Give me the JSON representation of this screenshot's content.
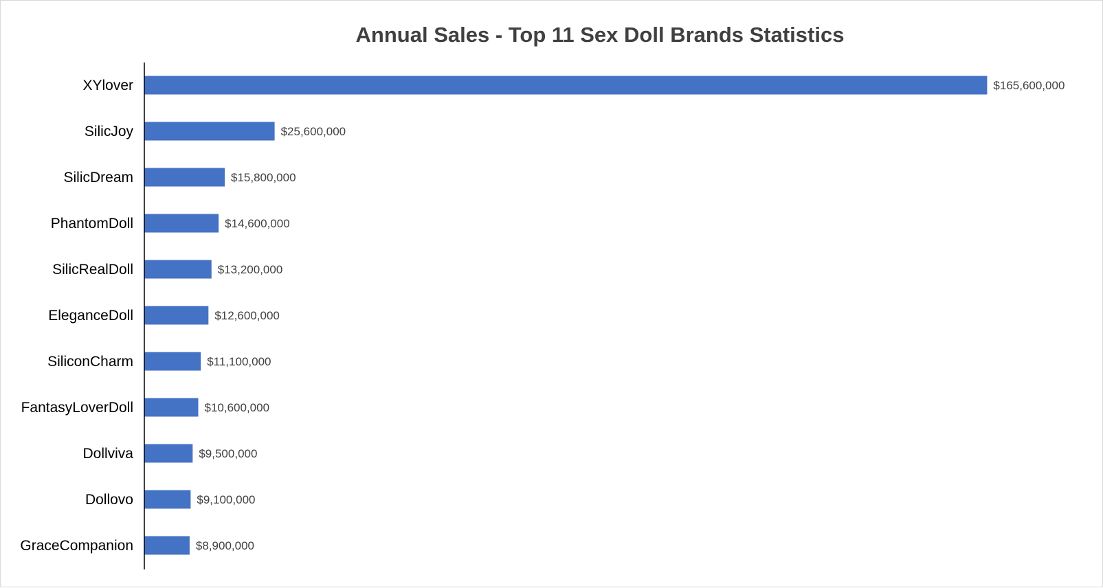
{
  "chart_data": {
    "type": "bar",
    "orientation": "horizontal",
    "title": "Annual Sales - Top 11 Sex Doll Brands Statistics",
    "xlabel": "",
    "ylabel": "",
    "xlim": [
      0,
      170000000
    ],
    "grid": false,
    "legend": "none",
    "bar_color": "#4472C4",
    "categories": [
      "XYlover",
      "SilicJoy",
      "SilicDream",
      "PhantomDoll",
      "SilicRealDoll",
      "EleganceDoll",
      "SiliconCharm",
      "FantasyLoverDoll",
      "Dollviva",
      "Dollovo",
      "GraceCompanion"
    ],
    "values": [
      165600000,
      25600000,
      15800000,
      14600000,
      13200000,
      12600000,
      11100000,
      10600000,
      9500000,
      9100000,
      8900000
    ],
    "data_labels": [
      "$165,600,000",
      "$25,600,000",
      "$15,800,000",
      "$14,600,000",
      "$13,200,000",
      "$12,600,000",
      "$11,100,000",
      "$10,600,000",
      "$9,500,000",
      "$9,100,000",
      "$8,900,000"
    ]
  }
}
